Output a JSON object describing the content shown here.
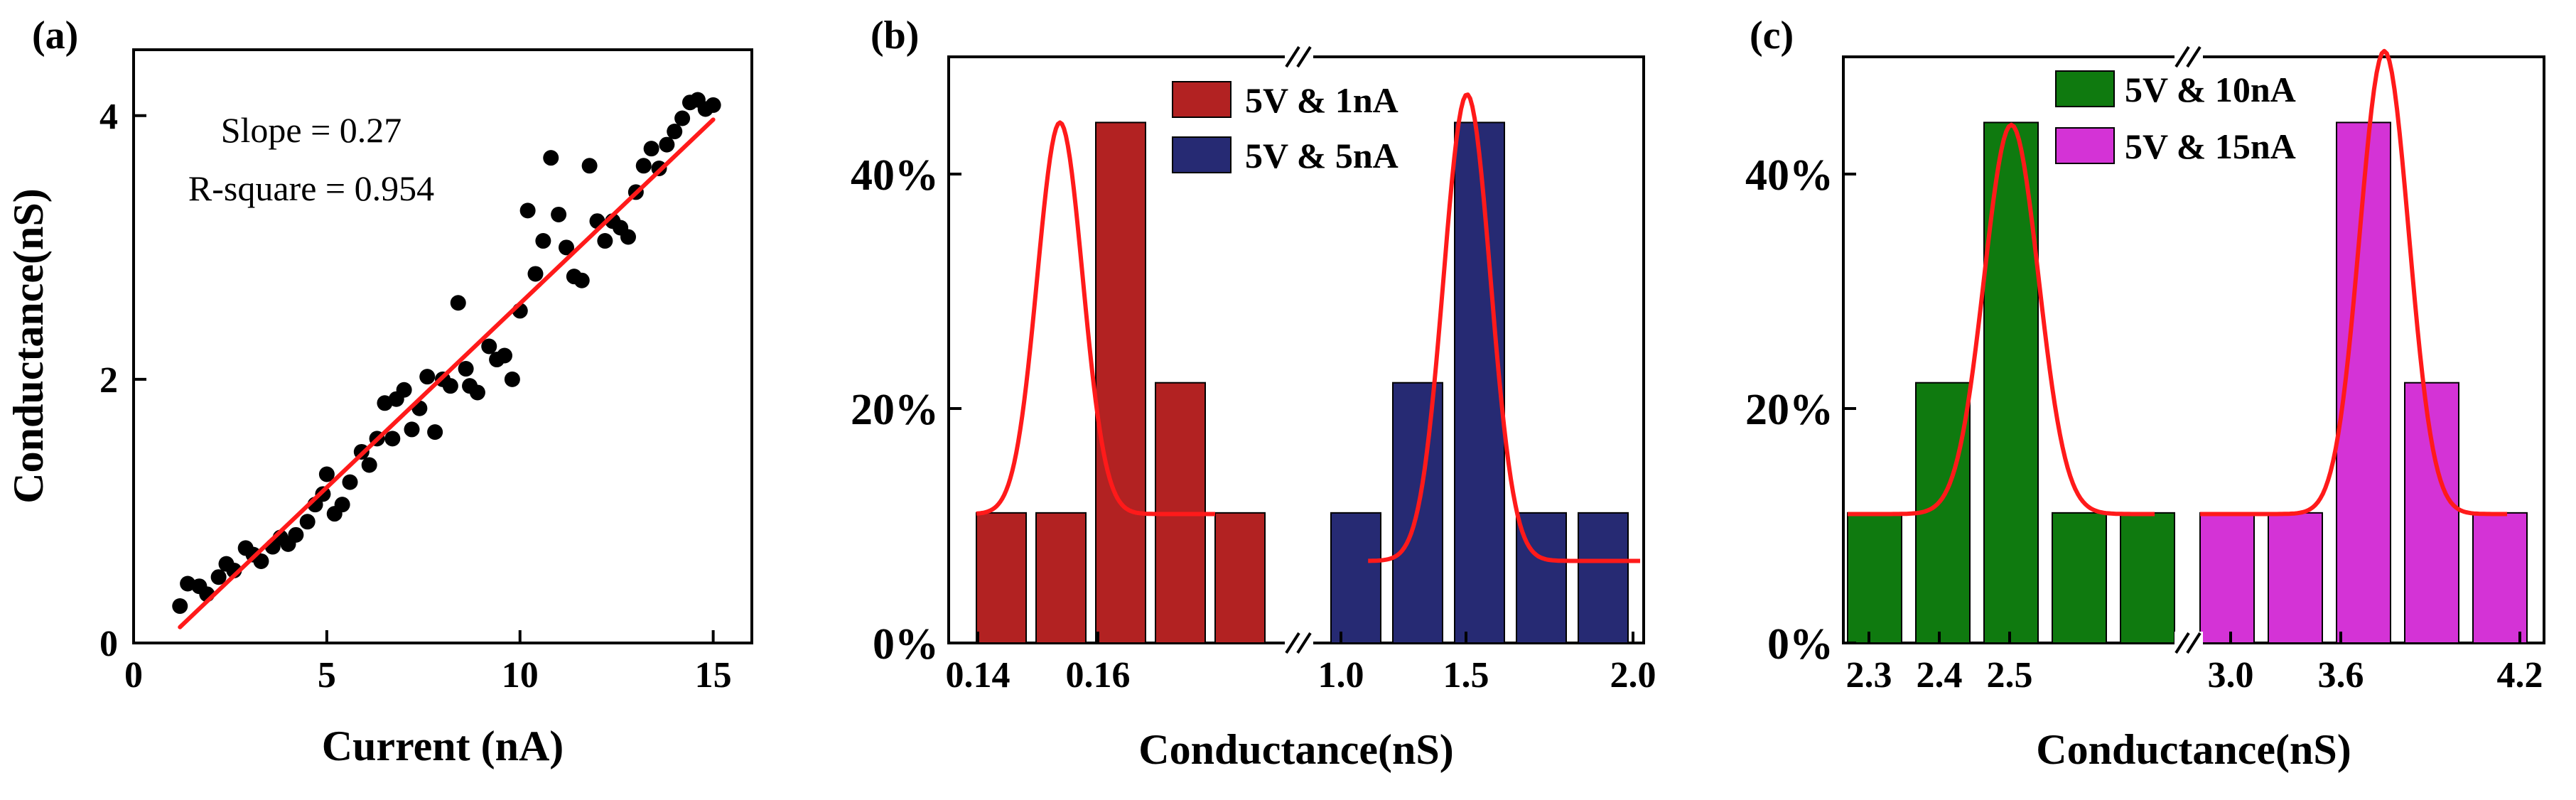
{
  "colors": {
    "fit": "#ff1a1a",
    "dots": "#000000",
    "axis": "#000000",
    "bar_red": "#b22222",
    "bar_navy": "#262a73",
    "bar_green": "#0f7a0f",
    "bar_magenta": "#d433d6"
  },
  "chart_data": [
    {
      "type": "scatter",
      "panel_label": "(a)",
      "xlabel": "Current (nA)",
      "ylabel": "Conductance(nS)",
      "xlim": [
        0,
        16
      ],
      "ylim": [
        0,
        4.5
      ],
      "x_ticks": [
        0,
        5,
        10,
        15
      ],
      "x_tick_labels": [
        "0",
        "5",
        "10",
        "15"
      ],
      "y_ticks": [
        0,
        2,
        4
      ],
      "y_tick_labels": [
        "0",
        "2",
        "4"
      ],
      "annotations": [
        "Slope = 0.27",
        "R-square = 0.954"
      ],
      "fit_line": {
        "x": [
          1.2,
          15.0
        ],
        "y": [
          0.12,
          3.97
        ]
      },
      "points": [
        [
          1.2,
          0.28
        ],
        [
          1.4,
          0.45
        ],
        [
          1.7,
          0.43
        ],
        [
          1.9,
          0.37
        ],
        [
          2.2,
          0.5
        ],
        [
          2.4,
          0.6
        ],
        [
          2.6,
          0.55
        ],
        [
          2.9,
          0.72
        ],
        [
          3.1,
          0.67
        ],
        [
          3.3,
          0.62
        ],
        [
          3.6,
          0.73
        ],
        [
          3.8,
          0.8
        ],
        [
          4.0,
          0.75
        ],
        [
          4.2,
          0.82
        ],
        [
          4.5,
          0.92
        ],
        [
          4.7,
          1.05
        ],
        [
          4.9,
          1.13
        ],
        [
          5.0,
          1.28
        ],
        [
          5.2,
          0.98
        ],
        [
          5.4,
          1.05
        ],
        [
          5.6,
          1.22
        ],
        [
          5.9,
          1.45
        ],
        [
          6.1,
          1.35
        ],
        [
          6.3,
          1.55
        ],
        [
          6.5,
          1.82
        ],
        [
          6.7,
          1.55
        ],
        [
          6.8,
          1.85
        ],
        [
          7.0,
          1.92
        ],
        [
          7.2,
          1.62
        ],
        [
          7.4,
          1.78
        ],
        [
          7.6,
          2.02
        ],
        [
          7.8,
          1.6
        ],
        [
          8.0,
          2.0
        ],
        [
          8.2,
          1.95
        ],
        [
          8.4,
          2.58
        ],
        [
          8.6,
          2.08
        ],
        [
          8.7,
          1.95
        ],
        [
          8.9,
          1.9
        ],
        [
          9.2,
          2.25
        ],
        [
          9.4,
          2.15
        ],
        [
          9.6,
          2.18
        ],
        [
          9.8,
          2.0
        ],
        [
          10.0,
          2.52
        ],
        [
          10.2,
          3.28
        ],
        [
          10.4,
          2.8
        ],
        [
          10.6,
          3.05
        ],
        [
          10.8,
          3.68
        ],
        [
          11.0,
          3.25
        ],
        [
          11.2,
          3.0
        ],
        [
          11.4,
          2.78
        ],
        [
          11.6,
          2.75
        ],
        [
          11.8,
          3.62
        ],
        [
          12.0,
          3.2
        ],
        [
          12.2,
          3.05
        ],
        [
          12.4,
          3.2
        ],
        [
          12.6,
          3.15
        ],
        [
          12.8,
          3.08
        ],
        [
          13.0,
          3.42
        ],
        [
          13.2,
          3.62
        ],
        [
          13.4,
          3.75
        ],
        [
          13.6,
          3.6
        ],
        [
          13.8,
          3.78
        ],
        [
          14.0,
          3.88
        ],
        [
          14.2,
          3.98
        ],
        [
          14.4,
          4.1
        ],
        [
          14.6,
          4.12
        ],
        [
          14.8,
          4.05
        ],
        [
          15.0,
          4.08
        ]
      ]
    },
    {
      "type": "bar",
      "panel_label": "(b)",
      "xlabel": "Conductance(nS)",
      "ylabel": "",
      "ylim": [
        0,
        50
      ],
      "y_ticks": [
        0,
        20,
        40
      ],
      "y_tick_labels": [
        "0%",
        "20%",
        "40%"
      ],
      "x_tick_labels": [
        "0.14",
        "0.16",
        "1.0",
        "1.5",
        "2.0"
      ],
      "axis_break_marks": [
        "//",
        "//"
      ],
      "series": [
        {
          "name": "5V & 1nA",
          "color": "#b22222",
          "values": [
            11.1,
            11.1,
            44.4,
            22.2,
            11.1
          ],
          "fit": {
            "baseline": 11,
            "peak": 44.4,
            "center": 1.4,
            "width": 0.38,
            "from": 0.0,
            "to": 4.0
          }
        },
        {
          "name": "5V & 5nA",
          "color": "#262a73",
          "values": [
            11.1,
            22.2,
            44.4,
            11.1,
            11.1
          ],
          "fit": {
            "baseline": 7,
            "peak": 46.8,
            "center": 2.2,
            "width": 0.38,
            "from": 0.6,
            "to": 5.0
          }
        }
      ]
    },
    {
      "type": "bar",
      "panel_label": "(c)",
      "xlabel": "Conductance(nS)",
      "ylabel": "",
      "ylim": [
        0,
        50
      ],
      "y_ticks": [
        0,
        20,
        40
      ],
      "y_tick_labels": [
        "0%",
        "20%",
        "40%"
      ],
      "x_tick_labels": [
        "2.3",
        "2.4",
        "2.5",
        "3.0",
        "3.6",
        "4.2"
      ],
      "axis_break_marks": [
        "//",
        "//"
      ],
      "series": [
        {
          "name": "5V & 10nA",
          "color": "#0f7a0f",
          "values": [
            11.1,
            22.2,
            44.4,
            11.1,
            11.1
          ],
          "fit": {
            "baseline": 11,
            "peak": 44.2,
            "center": 2.4,
            "width": 0.4,
            "from": 0.0,
            "to": 4.5
          }
        },
        {
          "name": "5V & 15nA",
          "color": "#d433d6",
          "values": [
            11.1,
            11.1,
            44.4,
            22.2,
            11.1
          ],
          "fit": {
            "baseline": 11,
            "peak": 50.5,
            "center": 2.7,
            "width": 0.36,
            "from": 0.0,
            "to": 4.5
          }
        }
      ]
    }
  ]
}
